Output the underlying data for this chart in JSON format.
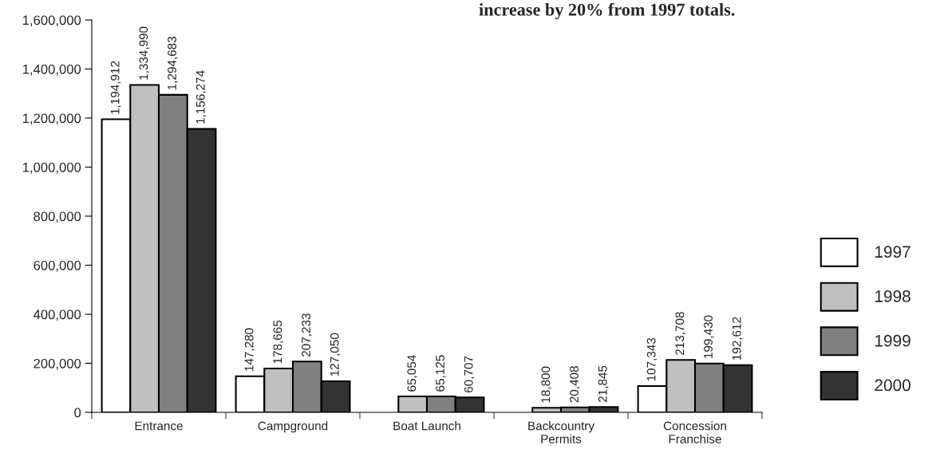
{
  "chart_data": {
    "type": "bar",
    "categories": [
      "Entrance",
      "Campground",
      "Boat Launch",
      "Backcountry\nPermits",
      "Concession\nFranchise"
    ],
    "series": [
      {
        "name": "1997",
        "color": "#ffffff",
        "values": [
          1194912,
          147280,
          null,
          null,
          107343
        ],
        "value_labels": [
          "1,194,912",
          "147,280",
          null,
          null,
          "107,343"
        ]
      },
      {
        "name": "1998",
        "color": "#c0c0c0",
        "values": [
          1334990,
          178665,
          65054,
          18800,
          213708
        ],
        "value_labels": [
          "1,334,990",
          "178,665",
          "65,054",
          "18,800",
          "213,708"
        ]
      },
      {
        "name": "1999",
        "color": "#808080",
        "values": [
          1294683,
          207233,
          65125,
          20408,
          199430
        ],
        "value_labels": [
          "1,294,683",
          "207,233",
          "65,125",
          "20,408",
          "199,430"
        ]
      },
      {
        "name": "2000",
        "color": "#333333",
        "values": [
          1156274,
          127050,
          60707,
          21845,
          192612
        ],
        "value_labels": [
          "1,156,274",
          "127,050",
          "60,707",
          "21,845",
          "192,612"
        ]
      }
    ],
    "ylim": [
      0,
      1600000
    ],
    "yticks": [
      {
        "value": 0,
        "label": "0"
      },
      {
        "value": 200000,
        "label": "200,000"
      },
      {
        "value": 400000,
        "label": "400,000"
      },
      {
        "value": 600000,
        "label": "600,000"
      },
      {
        "value": 800000,
        "label": "800,000"
      },
      {
        "value": 1000000,
        "label": "1,000,000"
      },
      {
        "value": 1200000,
        "label": "1,200,000"
      },
      {
        "value": 1400000,
        "label": "1,400,000"
      },
      {
        "value": 1600000,
        "label": "1,600,000"
      }
    ],
    "grid": false,
    "legend": "right",
    "annotations": [
      "increase by 20% from 1997 totals."
    ]
  }
}
